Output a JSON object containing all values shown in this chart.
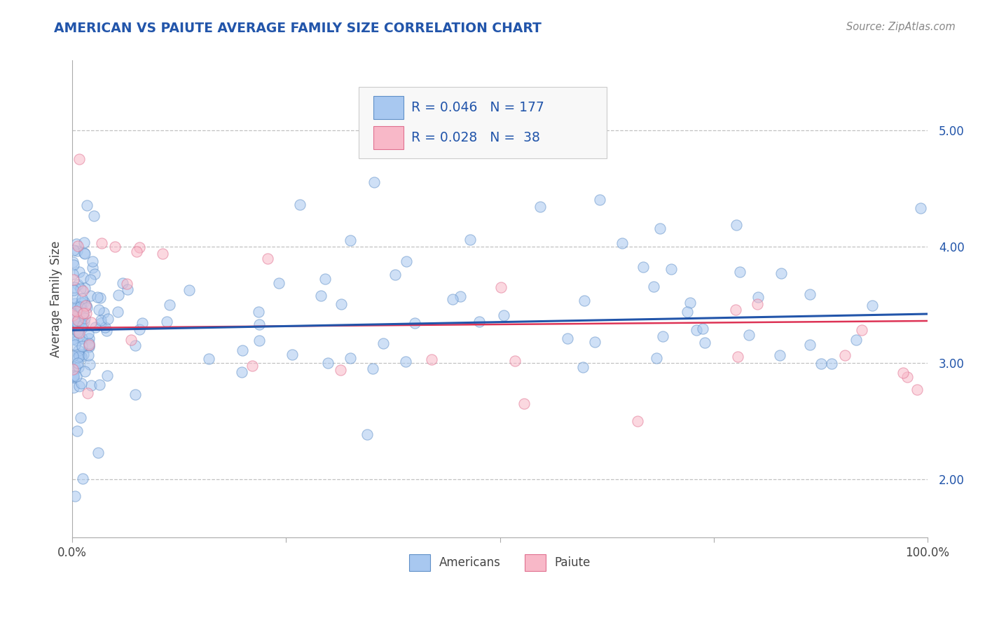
{
  "title": "AMERICAN VS PAIUTE AVERAGE FAMILY SIZE CORRELATION CHART",
  "source": "Source: ZipAtlas.com",
  "ylabel": "Average Family Size",
  "xlim": [
    0,
    1
  ],
  "ylim": [
    1.5,
    5.6
  ],
  "yticks": [
    2.0,
    3.0,
    4.0,
    5.0
  ],
  "xticks": [
    0.0,
    0.25,
    0.5,
    0.75,
    1.0
  ],
  "xtick_labels": [
    "0.0%",
    "",
    "",
    "",
    "100.0%"
  ],
  "legend_r_blue": "0.046",
  "legend_n_blue": "177",
  "legend_r_pink": "0.028",
  "legend_n_pink": "38",
  "blue_color": "#A8C8F0",
  "blue_edge_color": "#6090C8",
  "pink_color": "#F8B8C8",
  "pink_edge_color": "#E07090",
  "blue_line_color": "#2255AA",
  "pink_line_color": "#DD3355",
  "title_color": "#2255AA",
  "source_color": "#888888",
  "legend_text_color": "#2255AA",
  "background_color": "#FFFFFF",
  "grid_color": "#BBBBBB",
  "marker_size": 120,
  "alpha": 0.55,
  "legend_box_color": "#F8F8F8",
  "legend_box_edge": "#CCCCCC"
}
